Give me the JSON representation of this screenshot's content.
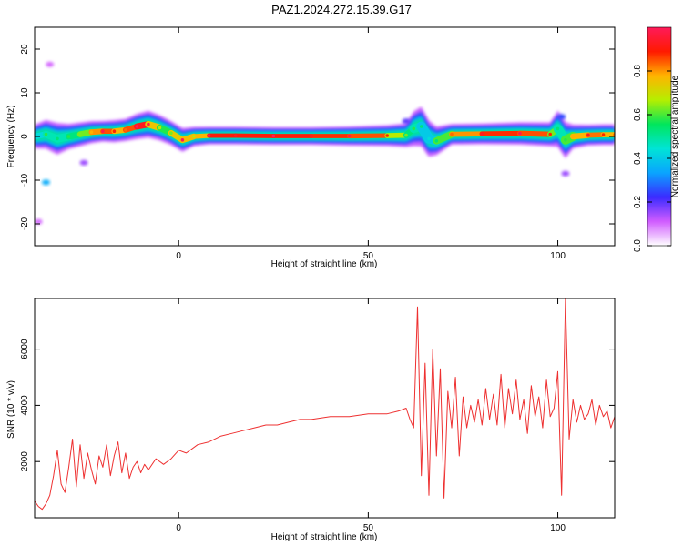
{
  "title": "PAZ1.2024.272.15.39.G17",
  "chart_data": [
    {
      "type": "heatmap",
      "xlabel": "Height of straight line (km)",
      "ylabel": "Frequency (Hz)",
      "xlim": [
        -38,
        115
      ],
      "ylim": [
        -25,
        25
      ],
      "xticks": [
        0,
        50,
        100
      ],
      "yticks": [
        20,
        10,
        0,
        -10,
        -20
      ],
      "grid": false,
      "colorbar": {
        "label": "Normalized spectral amplitude",
        "range": [
          0,
          1
        ],
        "ticks": [
          0.0,
          0.2,
          0.4,
          0.6,
          0.8
        ],
        "colors": [
          "#ffffff",
          "#d05cff",
          "#3b2bff",
          "#0aa4ff",
          "#00e4d6",
          "#00e65c",
          "#b5ef00",
          "#ffb400",
          "#ff1a00",
          "#ff1a5a"
        ]
      },
      "ridge": {
        "x": [
          -38,
          -35,
          -32,
          -29,
          -26,
          -23,
          -20,
          -17,
          -14,
          -11,
          -8,
          -5,
          -2,
          1,
          4,
          8,
          15,
          25,
          35,
          45,
          55,
          60,
          62,
          64,
          66,
          68,
          72,
          80,
          90,
          98,
          100,
          102,
          104,
          108,
          112,
          115
        ],
        "y": [
          0,
          0.5,
          -0.5,
          0,
          0.5,
          1,
          1.2,
          1.2,
          1.5,
          2.3,
          2.8,
          2,
          0.8,
          -0.8,
          0,
          0.2,
          0.2,
          0.1,
          0.1,
          0.1,
          0.2,
          0.3,
          1.8,
          2.3,
          -0.5,
          -1.0,
          0.5,
          0.6,
          0.7,
          0.5,
          1.8,
          -0.8,
          0,
          0.3,
          0.4,
          0.4
        ],
        "width_hz": [
          1.5,
          1.8,
          2,
          1.6,
          1.5,
          1.4,
          1.3,
          1.4,
          1.4,
          1.6,
          1.7,
          1.6,
          1.5,
          1.5,
          1.2,
          1.1,
          1.1,
          1.1,
          1.1,
          1.2,
          1.3,
          1.5,
          2.2,
          2.5,
          2.3,
          1.8,
          1.3,
          1.3,
          1.4,
          1.5,
          2.3,
          2.3,
          1.5,
          1.3,
          1.3,
          1.3
        ],
        "amp": [
          0.35,
          0.5,
          0.45,
          0.5,
          0.55,
          0.7,
          0.9,
          0.8,
          0.75,
          0.95,
          0.9,
          0.6,
          0.55,
          0.92,
          0.6,
          0.95,
          0.85,
          0.95,
          0.85,
          0.9,
          0.8,
          0.55,
          0.5,
          0.45,
          0.35,
          0.45,
          0.75,
          0.85,
          0.9,
          0.8,
          0.45,
          0.5,
          0.7,
          0.85,
          0.8,
          0.75
        ]
      },
      "extra_features": [
        {
          "x": -35,
          "y": -10.5,
          "amp": 0.35
        },
        {
          "x": -34,
          "y": 16.5,
          "amp": 0.1
        },
        {
          "x": -37,
          "y": -19.5,
          "amp": 0.1
        },
        {
          "x": 101,
          "y": 4.5,
          "amp": 0.25
        },
        {
          "x": 102,
          "y": -8.5,
          "amp": 0.15
        },
        {
          "x": 60,
          "y": 3.5,
          "amp": 0.2
        },
        {
          "x": -25,
          "y": -6,
          "amp": 0.15
        }
      ]
    },
    {
      "type": "line",
      "xlabel": "Height of straight line (km)",
      "ylabel": "SNR (10 * v/v)",
      "xlim": [
        -38,
        115
      ],
      "ylim": [
        0,
        7800
      ],
      "xticks": [
        0,
        50,
        100
      ],
      "yticks": [
        2000,
        4000,
        6000
      ],
      "grid": false,
      "color": "#ee3030",
      "series": [
        {
          "x": [
            -38,
            -37,
            -36,
            -35,
            -34,
            -33,
            -32,
            -31,
            -30,
            -29,
            -28,
            -27,
            -26,
            -25,
            -24,
            -23,
            -22,
            -21,
            -20,
            -19,
            -18,
            -17,
            -16,
            -15,
            -14,
            -13,
            -12,
            -11,
            -10,
            -9,
            -8,
            -6,
            -4,
            -2,
            0,
            2,
            5,
            8,
            11,
            14,
            17,
            20,
            23,
            26,
            29,
            32,
            35,
            40,
            45,
            50,
            55,
            58,
            60,
            61,
            62,
            63,
            64,
            65,
            66,
            67,
            68,
            69,
            70,
            71,
            72,
            73,
            74,
            75,
            76,
            77,
            78,
            79,
            80,
            81,
            82,
            83,
            84,
            85,
            86,
            87,
            88,
            89,
            90,
            91,
            92,
            93,
            94,
            95,
            96,
            97,
            98,
            99,
            100,
            101,
            102,
            103,
            104,
            105,
            106,
            107,
            108,
            109,
            110,
            111,
            112,
            113,
            114,
            115
          ],
          "y": [
            600,
            400,
            300,
            500,
            800,
            1500,
            2400,
            1200,
            900,
            1800,
            2800,
            1100,
            2600,
            1400,
            2300,
            1700,
            1200,
            2200,
            1800,
            2600,
            1500,
            2200,
            2700,
            1600,
            2300,
            1400,
            1800,
            2000,
            1600,
            1900,
            1700,
            2100,
            1900,
            2100,
            2400,
            2300,
            2600,
            2700,
            2900,
            3000,
            3100,
            3200,
            3300,
            3300,
            3400,
            3500,
            3500,
            3600,
            3600,
            3700,
            3700,
            3800,
            3900,
            3500,
            3200,
            7500,
            1500,
            5500,
            800,
            6000,
            2200,
            5300,
            700,
            4500,
            3200,
            5000,
            2200,
            4300,
            3200,
            4000,
            3400,
            4200,
            3300,
            4600,
            3500,
            4400,
            3300,
            5100,
            3200,
            4600,
            3700,
            4900,
            3500,
            4200,
            3000,
            4700,
            3600,
            4300,
            3200,
            4900,
            3600,
            3900,
            5200,
            800,
            7800,
            2800,
            4200,
            3400,
            4000,
            3500,
            3700,
            4200,
            3300,
            4000,
            3600,
            3800,
            3200,
            3600
          ]
        }
      ]
    }
  ]
}
